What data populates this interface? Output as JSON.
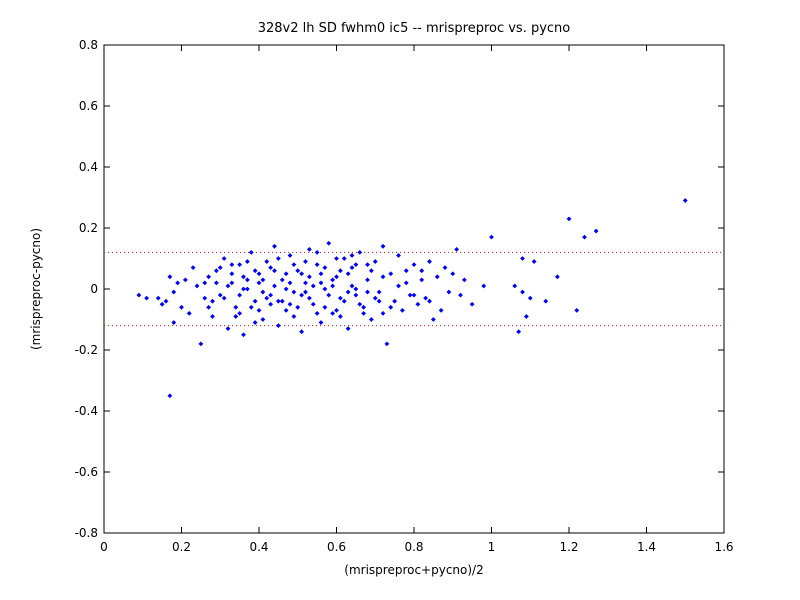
{
  "chart_data": {
    "type": "scatter",
    "title": "328v2 lh SD fwhm0 ic5 -- mrispreproc vs. pycno",
    "xlabel": "(mrispreproc+pycno)/2",
    "ylabel": "(mrispreproc-pycno)",
    "xlim": [
      0,
      1.6
    ],
    "ylim": [
      -0.8,
      0.8
    ],
    "x_ticks": [
      "0",
      "0.2",
      "0.4",
      "0.6",
      "0.8",
      "1",
      "1.2",
      "1.4",
      "1.6"
    ],
    "y_ticks": [
      "-0.8",
      "-0.6",
      "-0.4",
      "-0.2",
      "0",
      "0.2",
      "0.4",
      "0.6",
      "0.8"
    ],
    "grid": false,
    "marker_color": "#0000ff",
    "reference_lines": [
      {
        "y": 0.12,
        "style": "dotted",
        "color": "#ff0000"
      },
      {
        "y": -0.12,
        "style": "dotted",
        "color": "#ff0000"
      }
    ],
    "series": [
      {
        "points": [
          [
            0.09,
            -0.02
          ],
          [
            0.11,
            -0.03
          ],
          [
            0.14,
            -0.03
          ],
          [
            0.15,
            -0.05
          ],
          [
            0.16,
            -0.04
          ],
          [
            0.17,
            0.04
          ],
          [
            0.18,
            -0.01
          ],
          [
            0.18,
            -0.11
          ],
          [
            0.19,
            0.02
          ],
          [
            0.2,
            -0.06
          ],
          [
            0.21,
            0.03
          ],
          [
            0.22,
            -0.08
          ],
          [
            0.23,
            0.07
          ],
          [
            0.24,
            0.01
          ],
          [
            0.25,
            -0.18
          ],
          [
            0.26,
            -0.03
          ],
          [
            0.27,
            0.04
          ],
          [
            0.28,
            -0.09
          ],
          [
            0.29,
            0.06
          ],
          [
            0.3,
            -0.02
          ],
          [
            0.31,
            0.1
          ],
          [
            0.32,
            -0.13
          ],
          [
            0.33,
            0.02
          ],
          [
            0.34,
            -0.06
          ],
          [
            0.35,
            0.08
          ],
          [
            0.36,
            -0.15
          ],
          [
            0.37,
            0.0
          ],
          [
            0.38,
            0.12
          ],
          [
            0.39,
            -0.04
          ],
          [
            0.4,
            0.05
          ],
          [
            0.41,
            -0.1
          ],
          [
            0.42,
            0.09
          ],
          [
            0.43,
            -0.02
          ],
          [
            0.44,
            0.14
          ],
          [
            0.45,
            -0.12
          ],
          [
            0.46,
            0.03
          ],
          [
            0.47,
            -0.07
          ],
          [
            0.48,
            0.11
          ],
          [
            0.49,
            -0.01
          ],
          [
            0.5,
            0.06
          ],
          [
            0.51,
            -0.14
          ],
          [
            0.52,
            0.02
          ],
          [
            0.53,
            0.13
          ],
          [
            0.54,
            -0.05
          ],
          [
            0.55,
            0.08
          ],
          [
            0.56,
            -0.11
          ],
          [
            0.57,
            0.0
          ],
          [
            0.58,
            0.15
          ],
          [
            0.59,
            -0.08
          ],
          [
            0.6,
            0.04
          ],
          [
            0.61,
            -0.03
          ],
          [
            0.62,
            0.1
          ],
          [
            0.63,
            -0.13
          ],
          [
            0.64,
            0.07
          ],
          [
            0.65,
            -0.02
          ],
          [
            0.66,
            0.12
          ],
          [
            0.67,
            -0.06
          ],
          [
            0.68,
            0.03
          ],
          [
            0.69,
            -0.1
          ],
          [
            0.7,
            0.09
          ],
          [
            0.71,
            -0.01
          ],
          [
            0.72,
            0.14
          ],
          [
            0.73,
            -0.18
          ],
          [
            0.74,
            0.05
          ],
          [
            0.75,
            -0.04
          ],
          [
            0.76,
            0.11
          ],
          [
            0.77,
            -0.07
          ],
          [
            0.78,
            0.02
          ],
          [
            0.79,
            -0.02
          ],
          [
            0.8,
            0.08
          ],
          [
            0.81,
            -0.05
          ],
          [
            0.82,
            0.06
          ],
          [
            0.83,
            -0.03
          ],
          [
            0.84,
            0.09
          ],
          [
            0.85,
            -0.1
          ],
          [
            0.86,
            0.04
          ],
          [
            0.87,
            -0.07
          ],
          [
            0.88,
            0.07
          ],
          [
            0.89,
            -0.01
          ],
          [
            0.9,
            0.05
          ],
          [
            0.91,
            0.13
          ],
          [
            0.92,
            -0.02
          ],
          [
            0.93,
            0.03
          ],
          [
            0.95,
            -0.05
          ],
          [
            0.98,
            0.01
          ],
          [
            0.26,
            0.02
          ],
          [
            0.28,
            -0.04
          ],
          [
            0.3,
            0.07
          ],
          [
            0.32,
            0.01
          ],
          [
            0.34,
            -0.09
          ],
          [
            0.36,
            0.04
          ],
          [
            0.38,
            -0.06
          ],
          [
            0.4,
            0.02
          ],
          [
            0.42,
            -0.03
          ],
          [
            0.44,
            0.06
          ],
          [
            0.46,
            -0.04
          ],
          [
            0.48,
            0.02
          ],
          [
            0.5,
            -0.06
          ],
          [
            0.52,
            0.09
          ],
          [
            0.54,
            0.01
          ],
          [
            0.56,
            0.05
          ],
          [
            0.58,
            -0.02
          ],
          [
            0.6,
            0.1
          ],
          [
            0.62,
            -0.04
          ],
          [
            0.64,
            0.01
          ],
          [
            0.66,
            -0.05
          ],
          [
            0.68,
            0.08
          ],
          [
            0.7,
            -0.03
          ],
          [
            0.72,
            0.04
          ],
          [
            0.74,
            -0.06
          ],
          [
            0.76,
            0.01
          ],
          [
            0.78,
            0.06
          ],
          [
            0.8,
            -0.02
          ],
          [
            0.82,
            0.03
          ],
          [
            0.84,
            -0.04
          ],
          [
            0.33,
            0.05
          ],
          [
            0.35,
            -0.02
          ],
          [
            0.37,
            0.09
          ],
          [
            0.39,
            -0.11
          ],
          [
            0.41,
            0.03
          ],
          [
            0.43,
            -0.05
          ],
          [
            0.45,
            0.1
          ],
          [
            0.47,
            0.0
          ],
          [
            0.49,
            -0.09
          ],
          [
            0.51,
            0.05
          ],
          [
            0.53,
            -0.03
          ],
          [
            0.55,
            0.12
          ],
          [
            0.57,
            -0.06
          ],
          [
            0.59,
            0.03
          ],
          [
            0.61,
            -0.09
          ],
          [
            0.63,
            0.05
          ],
          [
            0.65,
            0.0
          ],
          [
            0.67,
            -0.08
          ],
          [
            0.69,
            0.06
          ],
          [
            0.71,
            -0.04
          ],
          [
            0.27,
            -0.06
          ],
          [
            0.29,
            0.02
          ],
          [
            0.31,
            -0.03
          ],
          [
            0.33,
            0.08
          ],
          [
            0.35,
            -0.08
          ],
          [
            0.37,
            0.03
          ],
          [
            0.39,
            0.06
          ],
          [
            0.41,
            -0.01
          ],
          [
            0.43,
            0.07
          ],
          [
            0.45,
            -0.04
          ],
          [
            0.47,
            0.05
          ],
          [
            0.49,
            0.08
          ],
          [
            0.51,
            -0.02
          ],
          [
            0.53,
            0.04
          ],
          [
            0.55,
            -0.08
          ],
          [
            0.57,
            0.07
          ],
          [
            0.59,
            0.01
          ],
          [
            0.61,
            0.06
          ],
          [
            0.63,
            -0.01
          ],
          [
            0.65,
            0.08
          ],
          [
            0.36,
            0.0
          ],
          [
            0.4,
            -0.07
          ],
          [
            0.44,
            0.01
          ],
          [
            0.48,
            -0.05
          ],
          [
            0.52,
            -0.01
          ],
          [
            0.56,
            0.02
          ],
          [
            0.6,
            -0.07
          ],
          [
            0.64,
            0.11
          ],
          [
            0.68,
            -0.01
          ],
          [
            0.72,
            -0.08
          ],
          [
            1.0,
            0.17
          ],
          [
            1.06,
            0.01
          ],
          [
            1.07,
            -0.14
          ],
          [
            1.08,
            0.1
          ],
          [
            1.08,
            -0.01
          ],
          [
            1.09,
            -0.09
          ],
          [
            1.1,
            -0.03
          ],
          [
            1.11,
            0.09
          ],
          [
            1.14,
            -0.04
          ],
          [
            1.17,
            0.04
          ],
          [
            1.2,
            0.23
          ],
          [
            1.22,
            -0.07
          ],
          [
            1.24,
            0.17
          ],
          [
            1.27,
            0.19
          ],
          [
            1.5,
            0.29
          ],
          [
            0.17,
            -0.35
          ]
        ]
      }
    ]
  }
}
